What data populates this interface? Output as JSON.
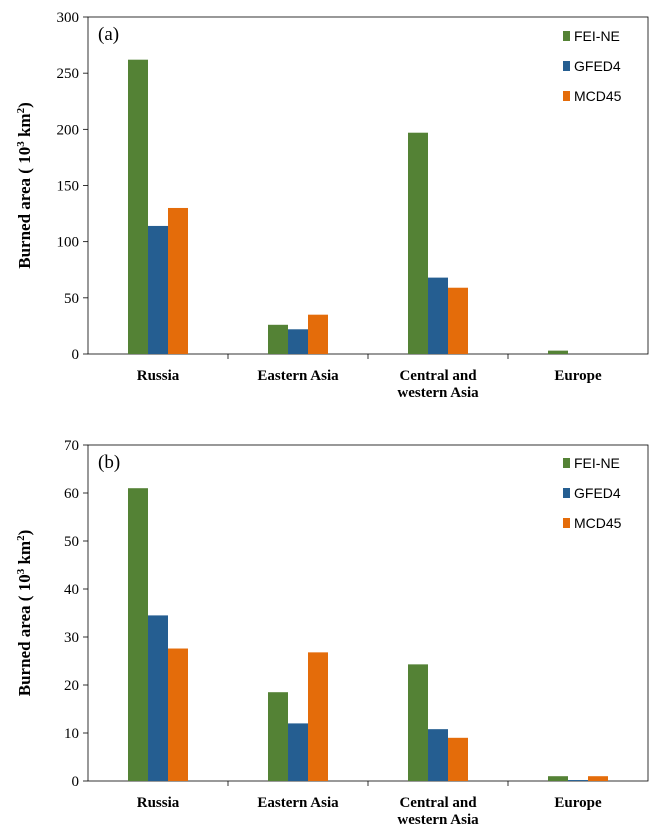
{
  "chart_data": [
    {
      "type": "bar",
      "panel_label": "(a)",
      "ylabel_main": "Burned  area ( 10",
      "ylabel_sup1": "3",
      "ylabel_mid": " km",
      "ylabel_sup2": "2",
      "ylabel_end": ")",
      "ylim": [
        0,
        300
      ],
      "yticks": [
        "0",
        "50",
        "100",
        "150",
        "200",
        "250",
        "300"
      ],
      "categories": [
        "Russia",
        "Eastern Asia",
        "Central and western Asia",
        "Europe"
      ],
      "category_lines": [
        [
          "Russia"
        ],
        [
          "Eastern Asia"
        ],
        [
          "Central and",
          "western Asia"
        ],
        [
          "Europe"
        ]
      ],
      "legend_position": "top-right",
      "series": [
        {
          "name": "FEI-NE",
          "color": "#548235",
          "values": [
            262,
            26,
            197,
            3
          ]
        },
        {
          "name": "GFED4",
          "color": "#255E91",
          "values": [
            114,
            22,
            68,
            0
          ]
        },
        {
          "name": "MCD45",
          "color": "#E46C0A",
          "values": [
            130,
            35,
            59,
            0
          ]
        }
      ]
    },
    {
      "type": "bar",
      "panel_label": "(b)",
      "ylabel_main": "Burned  area ( 10",
      "ylabel_sup1": "3",
      "ylabel_mid": " km",
      "ylabel_sup2": "2",
      "ylabel_end": ")",
      "ylim": [
        0,
        70
      ],
      "yticks": [
        "0",
        "10",
        "20",
        "30",
        "40",
        "50",
        "60",
        "70"
      ],
      "categories": [
        "Russia",
        "Eastern Asia",
        "Central and western Asia",
        "Europe"
      ],
      "category_lines": [
        [
          "Russia"
        ],
        [
          "Eastern Asia"
        ],
        [
          "Central and",
          "western Asia"
        ],
        [
          "Europe"
        ]
      ],
      "legend_position": "top-right",
      "series": [
        {
          "name": "FEI-NE",
          "color": "#548235",
          "values": [
            61,
            18.5,
            24.3,
            1
          ]
        },
        {
          "name": "GFED4",
          "color": "#255E91",
          "values": [
            34.5,
            12,
            10.8,
            0.2
          ]
        },
        {
          "name": "MCD45",
          "color": "#E46C0A",
          "values": [
            27.6,
            26.8,
            9,
            1
          ]
        }
      ]
    }
  ]
}
